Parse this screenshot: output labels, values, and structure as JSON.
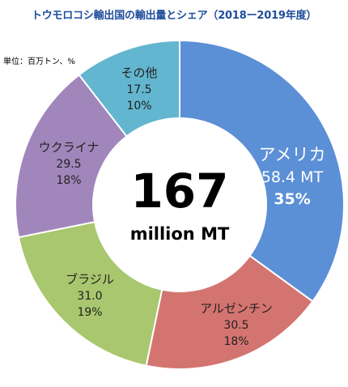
{
  "title": "トウモロコシ輸出国の輸出量とシェア（2018ー2019年度）",
  "unit_label": "単位：百万トン、%",
  "center": {
    "big": "167",
    "small": "million MT"
  },
  "chart_data": {
    "type": "pie",
    "title": "トウモロコシ輸出国の輸出量とシェア（2018ー2019年度）",
    "total": 167,
    "center_label": "167 million MT",
    "slices": [
      {
        "label": "アメリカ",
        "value": 58.4,
        "value_text": "58.4 MT",
        "share": 35,
        "share_text": "35%",
        "color": "#5b8fd6",
        "text_color": "#ffffff"
      },
      {
        "label": "アルゼンチン",
        "value": 30.5,
        "value_text": "30.5",
        "share": 18,
        "share_text": "18%",
        "color": "#d47470",
        "text_color": "#222222"
      },
      {
        "label": "ブラジル",
        "value": 31.0,
        "value_text": "31.0",
        "share": 19,
        "share_text": "19%",
        "color": "#a8c76e",
        "text_color": "#222222"
      },
      {
        "label": "ウクライナ",
        "value": 29.5,
        "value_text": "29.5",
        "share": 18,
        "share_text": "18%",
        "color": "#a186bb",
        "text_color": "#222222"
      },
      {
        "label": "その他",
        "value": 17.5,
        "value_text": "17.5",
        "share": 10,
        "share_text": "10%",
        "color": "#63b6cf",
        "text_color": "#222222"
      }
    ]
  }
}
